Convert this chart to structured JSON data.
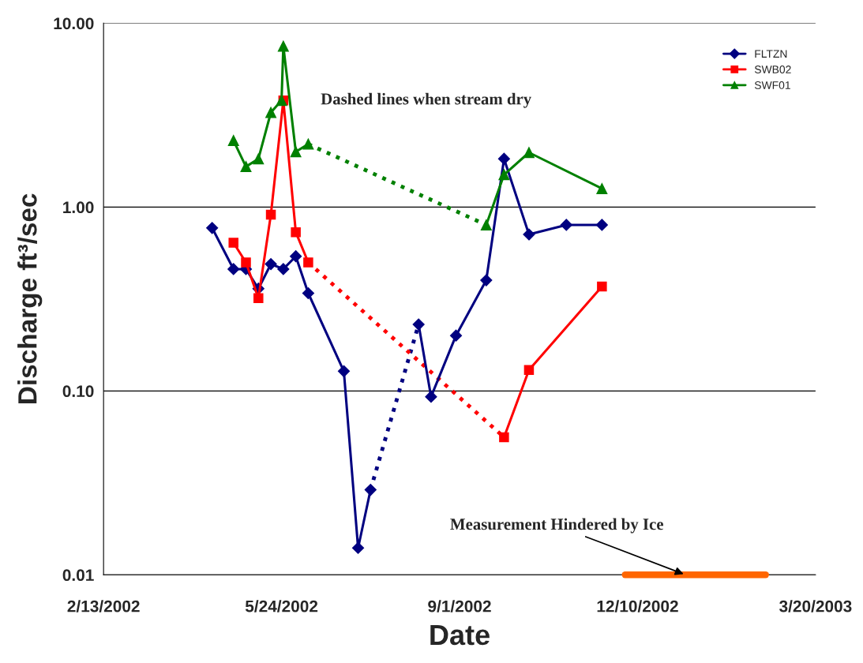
{
  "chart_data": {
    "type": "line",
    "xlabel": "Date",
    "ylabel": "Discharge ft³/sec",
    "log": "y",
    "grid": "y",
    "legend": "top right",
    "xlim": [
      "2002-02-13",
      "2003-03-20"
    ],
    "xticks": [
      {
        "value": "2002-02-13",
        "label": "2/13/2002"
      },
      {
        "value": "2002-05-24",
        "label": "5/24/2002"
      },
      {
        "value": "2002-09-01",
        "label": "9/1/2002"
      },
      {
        "value": "2002-12-10",
        "label": "12/10/2002"
      },
      {
        "value": "2003-03-20",
        "label": "3/20/2003"
      }
    ],
    "ylim": [
      0.01,
      10
    ],
    "yticks": [
      {
        "value": 0.01,
        "label": "0.01"
      },
      {
        "value": 0.1,
        "label": "0.10"
      },
      {
        "value": 1,
        "label": "1.00"
      },
      {
        "value": 10,
        "label": "10.00"
      }
    ],
    "series": [
      {
        "name": "FLTZN",
        "color": "#000080",
        "marker": "diamond",
        "line_style": "solid",
        "x": [
          "2002-04-15",
          "2002-04-27",
          "2002-05-04",
          "2002-05-11",
          "2002-05-18",
          "2002-05-25",
          "2002-06-01",
          "2002-06-08",
          "2002-06-28",
          "2002-07-06",
          "2002-07-13",
          null,
          "2002-08-09",
          "2002-08-16",
          "2002-08-30",
          "2002-09-16",
          "2002-09-26",
          "2002-10-10",
          "2002-10-31",
          "2002-11-20"
        ],
        "values": [
          0.77,
          0.46,
          0.46,
          0.36,
          0.49,
          0.46,
          0.54,
          0.34,
          0.128,
          0.014,
          0.029,
          null,
          0.23,
          0.093,
          0.2,
          0.4,
          1.83,
          0.71,
          0.8,
          0.8
        ]
      },
      {
        "name": "SWB02",
        "color": "#ff0000",
        "marker": "square",
        "line_style": "solid",
        "x": [
          "2002-04-27",
          "2002-05-04",
          "2002-05-11",
          "2002-05-18",
          "2002-05-25",
          "2002-06-01",
          "2002-06-08",
          null,
          "2002-09-26",
          "2002-10-10",
          "2002-11-20"
        ],
        "values": [
          0.64,
          0.5,
          0.32,
          0.91,
          3.8,
          0.73,
          0.5,
          null,
          0.056,
          0.13,
          0.37
        ]
      },
      {
        "name": "SWF01",
        "color": "#008000",
        "marker": "triangle",
        "line_style": "solid",
        "x": [
          "2002-04-27",
          "2002-05-04",
          "2002-05-11",
          "2002-05-18",
          "2002-05-24",
          "2002-05-25",
          "2002-06-01",
          "2002-06-08",
          null,
          "2002-09-16",
          "2002-09-26",
          "2002-10-10",
          "2002-11-20"
        ],
        "values": [
          2.3,
          1.66,
          1.83,
          3.27,
          3.8,
          7.5,
          2.0,
          2.2,
          null,
          0.8,
          1.5,
          1.98,
          1.26
        ]
      },
      {
        "color": "#ff6600",
        "marker": "none",
        "line_style": "solid",
        "x": [
          "2002-12-03",
          "2003-02-20"
        ],
        "values": [
          0.01,
          0.01
        ]
      }
    ],
    "annotations": [
      "Dashed lines when stream dry",
      {
        "text": "Measurement Hindered by Ice",
        "x": "2003-01-06",
        "y": 0.01
      }
    ]
  }
}
